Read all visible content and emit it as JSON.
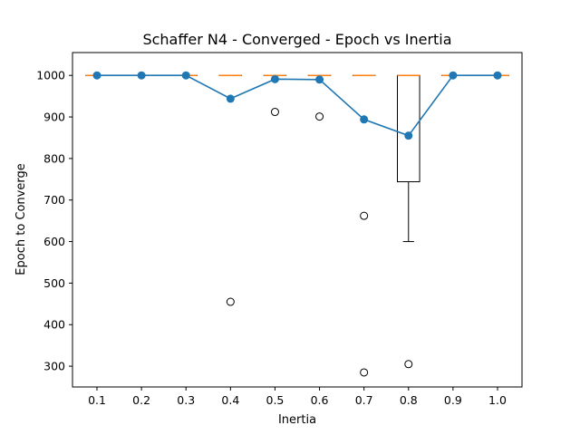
{
  "chart_data": {
    "type": "box",
    "title": "Schaffer N4 - Converged - Epoch vs Inertia",
    "xlabel": "Inertia",
    "ylabel": "Epoch to Converge",
    "categories": [
      "0.1",
      "0.2",
      "0.3",
      "0.4",
      "0.5",
      "0.6",
      "0.7",
      "0.8",
      "0.9",
      "1.0"
    ],
    "ylim": [
      250,
      1055
    ],
    "yticks": [
      300,
      400,
      500,
      600,
      700,
      800,
      900,
      1000
    ],
    "grid": false,
    "legend": "none",
    "boxes": [
      {
        "q1": 1000,
        "median": 1000,
        "q3": 1000,
        "whisker_low": 1000,
        "whisker_high": 1000,
        "outliers": []
      },
      {
        "q1": 1000,
        "median": 1000,
        "q3": 1000,
        "whisker_low": 1000,
        "whisker_high": 1000,
        "outliers": []
      },
      {
        "q1": 1000,
        "median": 1000,
        "q3": 1000,
        "whisker_low": 1000,
        "whisker_high": 1000,
        "outliers": []
      },
      {
        "q1": 1000,
        "median": 1000,
        "q3": 1000,
        "whisker_low": 1000,
        "whisker_high": 1000,
        "outliers": [
          455
        ]
      },
      {
        "q1": 1000,
        "median": 1000,
        "q3": 1000,
        "whisker_low": 1000,
        "whisker_high": 1000,
        "outliers": [
          912
        ]
      },
      {
        "q1": 1000,
        "median": 1000,
        "q3": 1000,
        "whisker_low": 1000,
        "whisker_high": 1000,
        "outliers": [
          901
        ]
      },
      {
        "q1": 1000,
        "median": 1000,
        "q3": 1000,
        "whisker_low": 1000,
        "whisker_high": 1000,
        "outliers": [
          662,
          285
        ]
      },
      {
        "q1": 744,
        "median": 1000,
        "q3": 1000,
        "whisker_low": 600,
        "whisker_high": 1000,
        "outliers": [
          305
        ]
      },
      {
        "q1": 1000,
        "median": 1000,
        "q3": 1000,
        "whisker_low": 1000,
        "whisker_high": 1000,
        "outliers": []
      },
      {
        "q1": 1000,
        "median": 1000,
        "q3": 1000,
        "whisker_low": 1000,
        "whisker_high": 1000,
        "outliers": []
      }
    ],
    "mean_line": {
      "values": [
        1000,
        1000,
        1000,
        944,
        991,
        990,
        894,
        855,
        1000,
        1000
      ]
    },
    "colors": {
      "mean_line": "#1f77b4",
      "median": "#ff7f0e",
      "box": "#000000",
      "background": "#ffffff"
    }
  }
}
